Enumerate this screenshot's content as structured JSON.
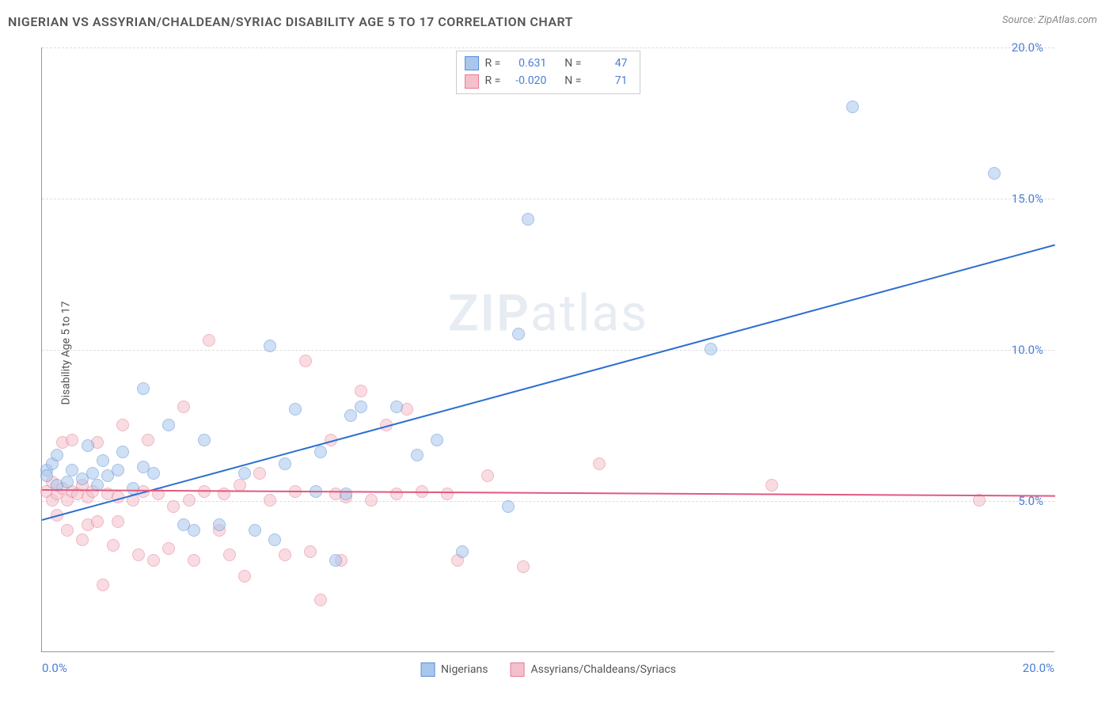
{
  "title": "NIGERIAN VS ASSYRIAN/CHALDEAN/SYRIAC DISABILITY AGE 5 TO 17 CORRELATION CHART",
  "source": "Source: ZipAtlas.com",
  "y_axis_label": "Disability Age 5 to 17",
  "watermark_a": "ZIP",
  "watermark_b": "atlas",
  "chart": {
    "type": "scatter",
    "xlim": [
      0,
      20
    ],
    "ylim": [
      0,
      20
    ],
    "x_ticks": [
      {
        "value": 0.0,
        "label": "0.0%"
      },
      {
        "value": 20.0,
        "label": "20.0%"
      }
    ],
    "y_ticks": [
      {
        "value": 5.0,
        "label": "5.0%"
      },
      {
        "value": 10.0,
        "label": "10.0%"
      },
      {
        "value": 15.0,
        "label": "15.0%"
      },
      {
        "value": 20.0,
        "label": "20.0%"
      }
    ],
    "grid_color": "#dddddd",
    "background_color": "#ffffff",
    "axis_color": "#999999",
    "tick_label_color": "#4a7fd6",
    "point_radius": 8,
    "point_opacity": 0.55,
    "series": [
      {
        "name": "Nigerians",
        "fill_color": "#a9c6ec",
        "stroke_color": "#5a8fd6",
        "trend_color": "#2e6fd1",
        "R": "0.631",
        "N": "47",
        "trend": {
          "x1": 0.0,
          "y1": 4.4,
          "x2": 20.0,
          "y2": 13.5
        },
        "points": [
          [
            0.1,
            6.0
          ],
          [
            0.1,
            5.8
          ],
          [
            0.2,
            6.2
          ],
          [
            0.3,
            5.5
          ],
          [
            0.3,
            6.5
          ],
          [
            0.5,
            5.6
          ],
          [
            0.6,
            6.0
          ],
          [
            0.8,
            5.7
          ],
          [
            0.9,
            6.8
          ],
          [
            1.0,
            5.9
          ],
          [
            1.1,
            5.5
          ],
          [
            1.2,
            6.3
          ],
          [
            1.3,
            5.8
          ],
          [
            1.5,
            6.0
          ],
          [
            1.6,
            6.6
          ],
          [
            1.8,
            5.4
          ],
          [
            2.0,
            6.1
          ],
          [
            2.0,
            8.7
          ],
          [
            2.2,
            5.9
          ],
          [
            2.5,
            7.5
          ],
          [
            2.8,
            4.2
          ],
          [
            3.0,
            4.0
          ],
          [
            3.2,
            7.0
          ],
          [
            3.5,
            4.2
          ],
          [
            4.0,
            5.9
          ],
          [
            4.2,
            4.0
          ],
          [
            4.5,
            10.1
          ],
          [
            4.6,
            3.7
          ],
          [
            4.8,
            6.2
          ],
          [
            5.0,
            8.0
          ],
          [
            5.4,
            5.3
          ],
          [
            5.5,
            6.6
          ],
          [
            5.8,
            3.0
          ],
          [
            6.0,
            5.2
          ],
          [
            6.1,
            7.8
          ],
          [
            6.3,
            8.1
          ],
          [
            7.0,
            8.1
          ],
          [
            7.4,
            6.5
          ],
          [
            7.8,
            7.0
          ],
          [
            8.3,
            3.3
          ],
          [
            9.2,
            4.8
          ],
          [
            9.4,
            10.5
          ],
          [
            9.6,
            14.3
          ],
          [
            13.2,
            10.0
          ],
          [
            16.0,
            18.0
          ],
          [
            18.8,
            15.8
          ]
        ]
      },
      {
        "name": "Assyrians/Chaldeans/Syriacs",
        "fill_color": "#f4c0cc",
        "stroke_color": "#e77b97",
        "trend_color": "#e05a80",
        "R": "-0.020",
        "N": "71",
        "trend": {
          "x1": 0.0,
          "y1": 5.4,
          "x2": 20.0,
          "y2": 5.2
        },
        "points": [
          [
            0.1,
            5.3
          ],
          [
            0.2,
            5.0
          ],
          [
            0.2,
            5.6
          ],
          [
            0.3,
            5.2
          ],
          [
            0.3,
            4.5
          ],
          [
            0.4,
            5.4
          ],
          [
            0.4,
            6.9
          ],
          [
            0.5,
            5.0
          ],
          [
            0.5,
            4.0
          ],
          [
            0.6,
            5.3
          ],
          [
            0.6,
            7.0
          ],
          [
            0.7,
            5.2
          ],
          [
            0.8,
            3.7
          ],
          [
            0.8,
            5.5
          ],
          [
            0.9,
            4.2
          ],
          [
            0.9,
            5.1
          ],
          [
            1.0,
            5.3
          ],
          [
            1.1,
            4.3
          ],
          [
            1.1,
            6.9
          ],
          [
            1.2,
            2.2
          ],
          [
            1.3,
            5.2
          ],
          [
            1.4,
            3.5
          ],
          [
            1.5,
            5.1
          ],
          [
            1.5,
            4.3
          ],
          [
            1.6,
            7.5
          ],
          [
            1.8,
            5.0
          ],
          [
            1.9,
            3.2
          ],
          [
            2.0,
            5.3
          ],
          [
            2.1,
            7.0
          ],
          [
            2.2,
            3.0
          ],
          [
            2.3,
            5.2
          ],
          [
            2.5,
            3.4
          ],
          [
            2.6,
            4.8
          ],
          [
            2.8,
            8.1
          ],
          [
            2.9,
            5.0
          ],
          [
            3.0,
            3.0
          ],
          [
            3.2,
            5.3
          ],
          [
            3.3,
            10.3
          ],
          [
            3.5,
            4.0
          ],
          [
            3.6,
            5.2
          ],
          [
            3.7,
            3.2
          ],
          [
            3.9,
            5.5
          ],
          [
            4.0,
            2.5
          ],
          [
            4.3,
            5.9
          ],
          [
            4.5,
            5.0
          ],
          [
            4.8,
            3.2
          ],
          [
            5.0,
            5.3
          ],
          [
            5.2,
            9.6
          ],
          [
            5.3,
            3.3
          ],
          [
            5.5,
            1.7
          ],
          [
            5.7,
            7.0
          ],
          [
            5.8,
            5.2
          ],
          [
            5.9,
            3.0
          ],
          [
            6.0,
            5.1
          ],
          [
            6.3,
            8.6
          ],
          [
            6.5,
            5.0
          ],
          [
            6.8,
            7.5
          ],
          [
            7.0,
            5.2
          ],
          [
            7.2,
            8.0
          ],
          [
            7.5,
            5.3
          ],
          [
            8.0,
            5.2
          ],
          [
            8.2,
            3.0
          ],
          [
            8.8,
            5.8
          ],
          [
            9.5,
            2.8
          ],
          [
            11.0,
            6.2
          ],
          [
            14.4,
            5.5
          ],
          [
            18.5,
            5.0
          ]
        ]
      }
    ],
    "legend_top": {
      "r_label": "R =",
      "n_label": "N ="
    }
  }
}
